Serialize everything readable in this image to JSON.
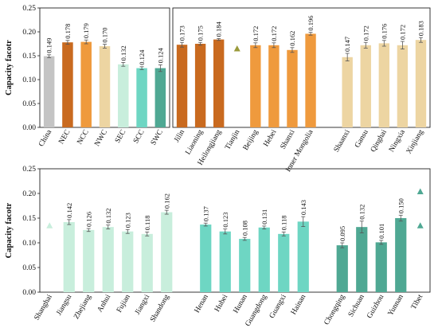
{
  "chart_data": [
    {
      "type": "bar",
      "panel": "top-left",
      "ylabel": "Capacity facotr",
      "ylim": [
        0,
        0.25
      ],
      "yticks": [
        "0.00",
        "0.05",
        "0.10",
        "0.15",
        "0.20",
        "0.25"
      ],
      "categories": [
        "China",
        "NEC",
        "NCC",
        "NWC",
        "SEC",
        "SCC",
        "SWC"
      ],
      "values": [
        0.149,
        0.178,
        0.179,
        0.17,
        0.132,
        0.124,
        0.124
      ],
      "labels": [
        "0.149",
        "0.178",
        "0.179",
        "0.170",
        "0.132",
        "0.124",
        "0.124"
      ],
      "errors": [
        0.003,
        0.004,
        0.004,
        0.004,
        0.004,
        0.003,
        0.007
      ],
      "colors": [
        "#c4c4c4",
        "#c96a1f",
        "#ef9a3d",
        "#edd5a2",
        "#c8eedc",
        "#6ed6c3",
        "#4fa893"
      ]
    },
    {
      "type": "bar",
      "panel": "top-right",
      "ylim": [
        0,
        0.25
      ],
      "categories": [
        "Jilin",
        "Liaoning",
        "Heilongjiang",
        "Tianjin",
        "Beijing",
        "Hebei",
        "Shanxi",
        "Inner Mongolia",
        "Shaanxi",
        "Gansu",
        "Qinghai",
        "Ningxia",
        "Xinjiang"
      ],
      "values": [
        0.173,
        0.175,
        0.184,
        null,
        0.172,
        0.172,
        0.162,
        0.196,
        null,
        0.147,
        0.172,
        0.176,
        0.172,
        0.183
      ],
      "labels": [
        "0.173",
        "0.175",
        "0.184",
        "",
        "0.172",
        "0.172",
        "0.162",
        "0.196",
        "",
        "0.147",
        "0.172",
        "0.176",
        "0.172",
        "0.183"
      ],
      "errors": [
        0.005,
        0.003,
        0.002,
        0,
        0.005,
        0.005,
        0.005,
        0.003,
        0,
        0.008,
        0.006,
        0.006,
        0.008,
        0.005
      ],
      "colors": [
        "#c96a1f",
        "#c96a1f",
        "#c96a1f",
        "#ef9a3d",
        "#ef9a3d",
        "#ef9a3d",
        "#ef9a3d",
        "#ef9a3d",
        "#edd5a2",
        "#edd5a2",
        "#edd5a2",
        "#edd5a2",
        "#edd5a2",
        "#edd5a2"
      ],
      "label_slots": [
        0,
        1,
        2,
        3,
        4,
        5,
        6,
        7,
        9,
        10,
        11,
        12,
        13
      ],
      "markers": [
        {
          "slot": 3,
          "value": 0.165,
          "color": "#9a9a3a"
        }
      ]
    },
    {
      "type": "bar",
      "panel": "bottom",
      "ylabel": "Capacity facotr",
      "ylim": [
        0,
        0.25
      ],
      "yticks": [
        "0.00",
        "0.05",
        "0.10",
        "0.15",
        "0.20",
        "0.25"
      ],
      "categories": [
        "Shanghai",
        "Jiangsu",
        "Zhejiang",
        "Anhui",
        "Fujian",
        "Jiangxi",
        "Shandong",
        "Henan",
        "Hubei",
        "Hunan",
        "Guangdong",
        "Guangxi",
        "Hainan",
        "Chongqing",
        "Sichuan",
        "Guizhou",
        "Yunnan",
        "Tibet"
      ],
      "values": [
        null,
        0.142,
        0.126,
        0.132,
        0.123,
        0.118,
        0.162,
        null,
        0.137,
        0.123,
        0.108,
        0.131,
        0.118,
        0.143,
        null,
        0.095,
        0.132,
        0.101,
        0.15,
        null
      ],
      "labels": [
        "",
        "0.142",
        "0.126",
        "0.132",
        "0.123",
        "0.118",
        "0.162",
        "",
        "0.137",
        "0.123",
        "0.108",
        "0.131",
        "0.118",
        "0.143",
        "",
        "0.095",
        "0.132",
        "0.101",
        "0.150",
        ""
      ],
      "errors": [
        0,
        0.005,
        0.003,
        0.004,
        0.004,
        0.004,
        0.004,
        0,
        0.003,
        0.005,
        0.003,
        0.003,
        0.004,
        0.01,
        0,
        0.005,
        0.012,
        0.004,
        0.006,
        0
      ],
      "colors": [
        "#c8eedc",
        "#c8eedc",
        "#c8eedc",
        "#c8eedc",
        "#c8eedc",
        "#c8eedc",
        "#c8eedc",
        "#6ed6c3",
        "#6ed6c3",
        "#6ed6c3",
        "#6ed6c3",
        "#6ed6c3",
        "#6ed6c3",
        "#6ed6c3",
        "#4fa893",
        "#4fa893",
        "#4fa893",
        "#4fa893",
        "#4fa893",
        "#4fa893"
      ],
      "label_slots": [
        0,
        1,
        2,
        3,
        4,
        5,
        6,
        8,
        9,
        10,
        11,
        12,
        13,
        15,
        16,
        17,
        18,
        19
      ],
      "markers": [
        {
          "slot": 0,
          "value": 0.135,
          "color": "#c8eedc"
        },
        {
          "slot": 19,
          "value": 0.204,
          "color": "#4fa893"
        },
        {
          "slot": 19,
          "value": 0.135,
          "color": "#4fa893"
        }
      ]
    }
  ]
}
